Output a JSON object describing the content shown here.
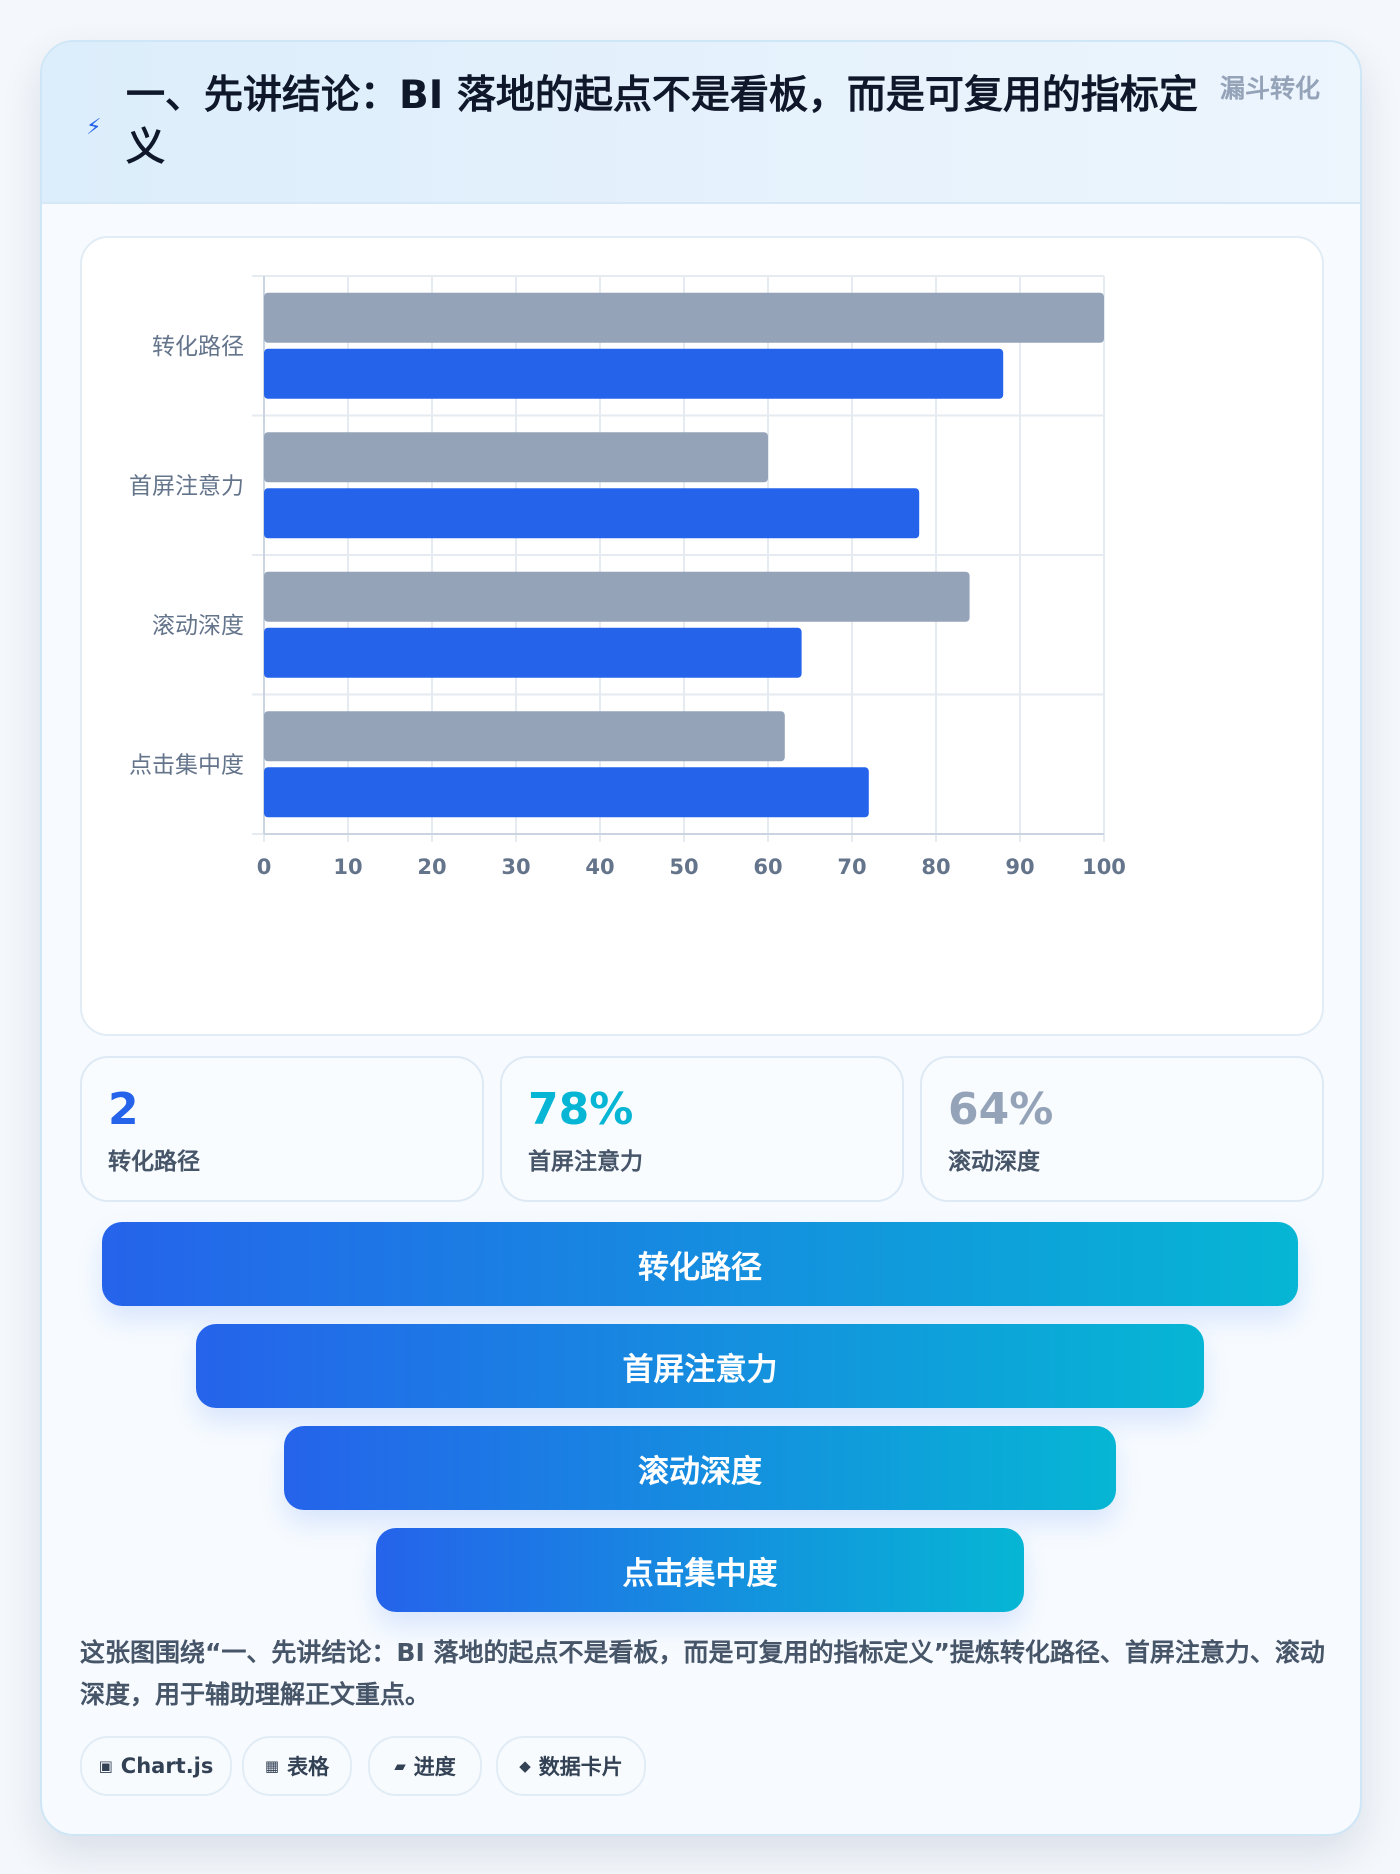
{
  "header": {
    "icon": "bolt-icon",
    "title": "一、先讲结论：BI 落地的起点不是看板，而是可复用的指标定义",
    "tag": "漏斗转化"
  },
  "chart_data": {
    "type": "bar",
    "orientation": "horizontal",
    "categories": [
      "转化路径",
      "首屏注意力",
      "滚动深度",
      "点击集中度"
    ],
    "series": [
      {
        "color": "#94a3b8",
        "values": [
          100,
          60,
          84,
          62
        ]
      },
      {
        "color": "#2563eb",
        "values": [
          88,
          78,
          64,
          72
        ]
      }
    ],
    "xlim": [
      0,
      100
    ],
    "xticks": [
      "0",
      "10",
      "20",
      "30",
      "40",
      "50",
      "60",
      "70",
      "80",
      "90",
      "100"
    ],
    "grid": true,
    "legend": "none"
  },
  "stats": [
    {
      "value": "2",
      "label": "转化路径",
      "color": "#2563eb"
    },
    {
      "value": "78%",
      "label": "首屏注意力",
      "color": "#06b6d4"
    },
    {
      "value": "64%",
      "label": "滚动深度",
      "color": "#94a3b8"
    }
  ],
  "funnel": [
    "转化路径",
    "首屏注意力",
    "滚动深度",
    "点击集中度"
  ],
  "caption": "这张图围绕“一、先讲结论：BI 落地的起点不是看板，而是可复用的指标定义”提炼转化路径、首屏注意力、滚动深度，用于辅助理解正文重点。",
  "chips": [
    {
      "icon": "chart-icon",
      "glyph": "▣",
      "label": "Chart.js"
    },
    {
      "icon": "table-icon",
      "glyph": "▦",
      "label": "表格"
    },
    {
      "icon": "progress-icon",
      "glyph": "▰",
      "label": "进度"
    },
    {
      "icon": "diamond-icon",
      "glyph": "◆",
      "label": "数据卡片"
    }
  ]
}
